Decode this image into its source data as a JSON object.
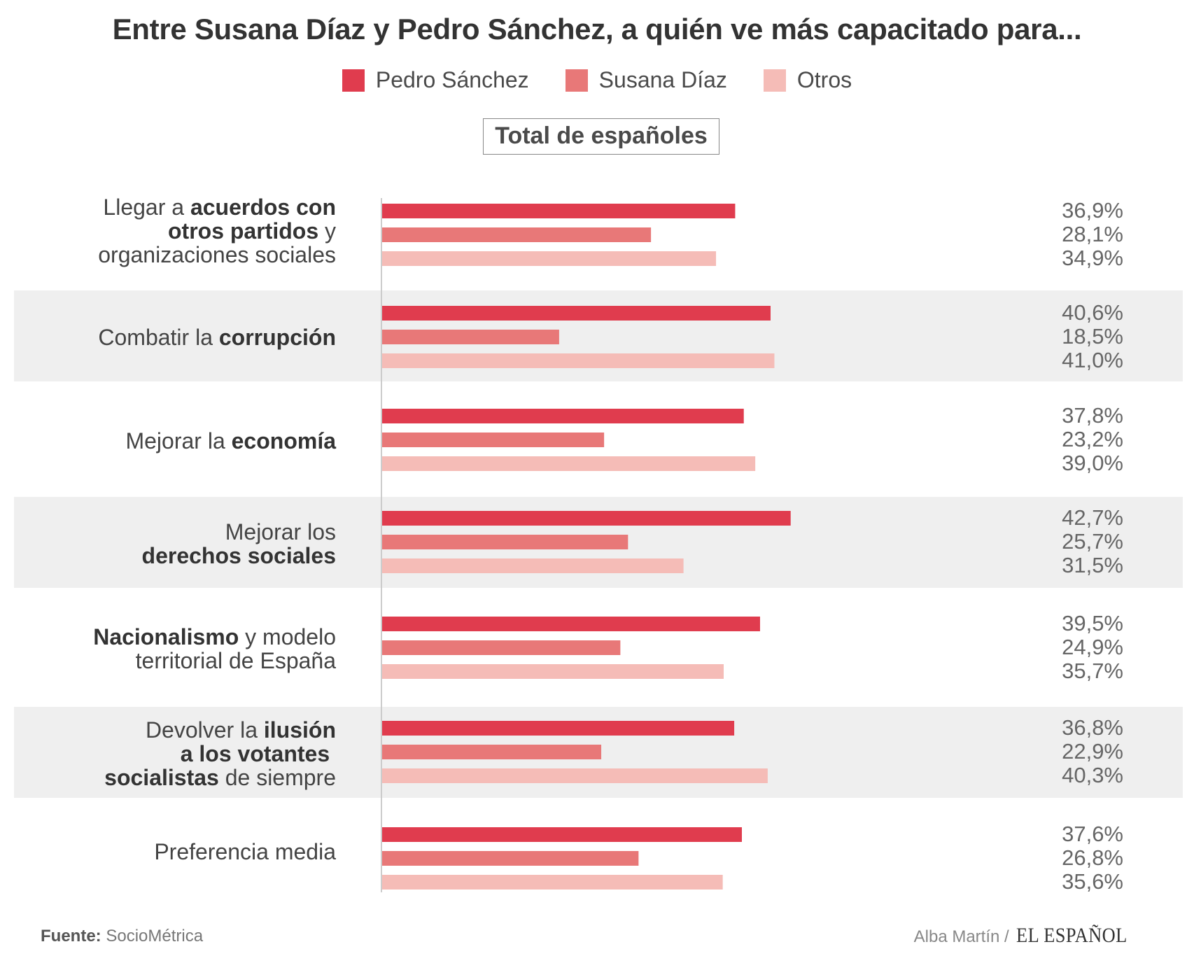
{
  "title": "Entre Susana Díaz y Pedro Sánchez, a quién ve más capacitado para...",
  "subtitle": "Total de españoles",
  "colors": {
    "pedro": "#e03c4e",
    "susana": "#e87878",
    "otros": "#f5bcb7",
    "band": "#efefef"
  },
  "legend": [
    {
      "name": "Pedro Sánchez",
      "color": "#e03c4e"
    },
    {
      "name": "Susana Díaz",
      "color": "#e87878"
    },
    {
      "name": "Otros",
      "color": "#f5bcb7"
    }
  ],
  "chart_data": {
    "type": "bar",
    "orientation": "horizontal",
    "grouped": true,
    "categories": [
      "Llegar a acuerdos con otros partidos y organizaciones sociales",
      "Combatir la corrupción",
      "Mejorar la economía",
      "Mejorar los derechos sociales",
      "Nacionalismo y modelo territorial de España",
      "Devolver la ilusión a los votantes socialistas de siempre",
      "Preferencia media"
    ],
    "category_lines": [
      [
        [
          {
            "t": "Llegar a "
          },
          {
            "t": "acuerdos con",
            "b": true
          }
        ],
        [
          {
            "t": "otros partidos",
            "b": true
          },
          {
            "t": " y"
          }
        ],
        [
          {
            "t": "organizaciones sociales"
          }
        ]
      ],
      [
        [
          {
            "t": "Combatir la "
          },
          {
            "t": "corrupción",
            "b": true
          }
        ]
      ],
      [
        [
          {
            "t": "Mejorar la "
          },
          {
            "t": "economía",
            "b": true
          }
        ]
      ],
      [
        [
          {
            "t": "Mejorar los"
          }
        ],
        [
          {
            "t": "derechos sociales",
            "b": true
          }
        ]
      ],
      [
        [
          {
            "t": "Nacionalismo",
            "b": true
          },
          {
            "t": " y modelo"
          }
        ],
        [
          {
            "t": "territorial de España"
          }
        ]
      ],
      [
        [
          {
            "t": "Devolver la "
          },
          {
            "t": "ilusión",
            "b": true
          }
        ],
        [
          {
            "t": "a los votantes ",
            "b": true
          }
        ],
        [
          {
            "t": "socialistas",
            "b": true
          },
          {
            "t": " de siempre"
          }
        ]
      ],
      [
        [
          {
            "t": "Preferencia media"
          }
        ]
      ]
    ],
    "series": [
      {
        "name": "Pedro Sánchez",
        "color": "#e03c4e",
        "values": [
          36.9,
          40.6,
          37.8,
          42.7,
          39.5,
          36.8,
          37.6
        ]
      },
      {
        "name": "Susana Díaz",
        "color": "#e87878",
        "values": [
          28.1,
          18.5,
          23.2,
          25.7,
          24.9,
          22.9,
          26.8
        ]
      },
      {
        "name": "Otros",
        "color": "#f5bcb7",
        "values": [
          34.9,
          41.0,
          39.0,
          31.5,
          35.7,
          40.3,
          35.6
        ]
      }
    ],
    "value_labels": [
      [
        "36,9%",
        "28,1%",
        "34,9%"
      ],
      [
        "40,6%",
        "18,5%",
        "41,0%"
      ],
      [
        "37,8%",
        "23,2%",
        "39,0%"
      ],
      [
        "42,7%",
        "25,7%",
        "31,5%"
      ],
      [
        "39,5%",
        "24,9%",
        "35,7%"
      ],
      [
        "36,8%",
        "22,9%",
        "40,3%"
      ],
      [
        "37,6%",
        "26,8%",
        "35,6%"
      ]
    ],
    "unit": "%",
    "xlim": [
      0,
      100
    ],
    "grid": false,
    "legend_position": "top-center",
    "alternating_bands": [
      false,
      true,
      false,
      true,
      false,
      true,
      false
    ]
  },
  "footer": {
    "source_label": "Fuente:",
    "source_name": "SocioMétrica",
    "author": "Alba Martín /",
    "brand": "EL ESPAÑOL"
  }
}
